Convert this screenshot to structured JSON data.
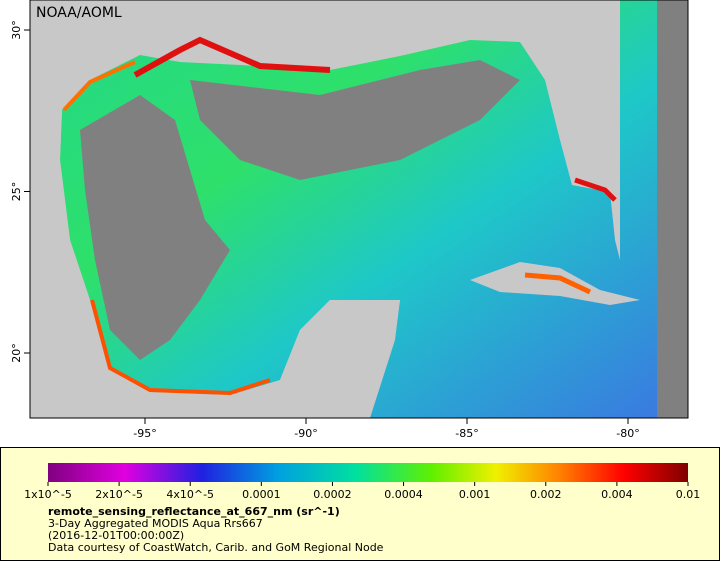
{
  "header": {
    "credit": "NOAA/AOML"
  },
  "map": {
    "lon_labels": [
      "-95°",
      "-90°",
      "-85°",
      "-80°"
    ],
    "lat_labels": [
      "30°",
      "25°",
      "20°"
    ]
  },
  "legend": {
    "ticks": [
      "1x10^-5",
      "2x10^-5",
      "4x10^-5",
      "0.0001",
      "0.0002",
      "0.0004",
      "0.001",
      "0.002",
      "0.004",
      "0.01"
    ],
    "variable": "remote_sensing_reflectance_at_667_nm (sr^-1)",
    "lines": [
      "3-Day Aggregated MODIS Aqua Rrs667",
      "(2016-12-01T00:00:00Z)",
      "Data courtesy of CoastWatch, Carib. and GoM Regional Node"
    ]
  }
}
